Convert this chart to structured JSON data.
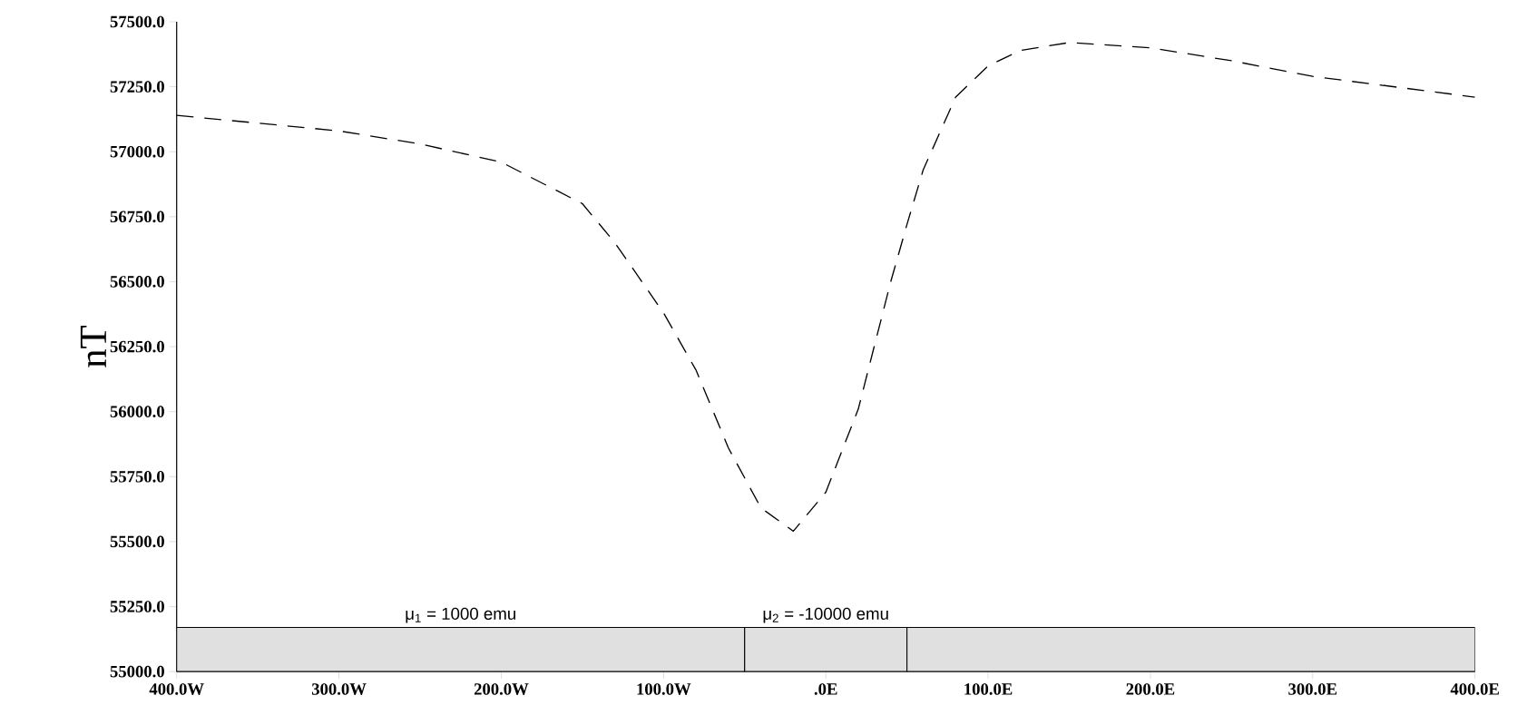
{
  "chart_data": {
    "type": "line",
    "ylabel": "nT",
    "x": [
      -400,
      -300,
      -250,
      -200,
      -150,
      -130,
      -100,
      -80,
      -60,
      -40,
      -20,
      0,
      20,
      40,
      50,
      60,
      80,
      100,
      120,
      150,
      200,
      250,
      300,
      350,
      400
    ],
    "series": [
      {
        "color": "#000000",
        "values": [
          57140,
          57080,
          57030,
          56960,
          56800,
          56650,
          56380,
          56160,
          55860,
          55630,
          55540,
          55690,
          56010,
          56500,
          56720,
          56930,
          57210,
          57330,
          57390,
          57420,
          57400,
          57350,
          57290,
          57250,
          57210
        ]
      }
    ],
    "xlim": [
      -400,
      400
    ],
    "ylim": [
      55000,
      57500
    ],
    "xticks": [
      {
        "value": -400,
        "label": "400.0W"
      },
      {
        "value": -300,
        "label": "300.0W"
      },
      {
        "value": -200,
        "label": "200.0W"
      },
      {
        "value": -100,
        "label": "100.0W"
      },
      {
        "value": 0,
        "label": ".0E"
      },
      {
        "value": 100,
        "label": "100.0E"
      },
      {
        "value": 200,
        "label": "200.0E"
      },
      {
        "value": 300,
        "label": "300.0E"
      },
      {
        "value": 400,
        "label": "400.0E"
      }
    ],
    "yticks": [
      {
        "value": 55000,
        "label": "55000.0"
      },
      {
        "value": 55250,
        "label": "55250.0"
      },
      {
        "value": 55500,
        "label": "55500.0"
      },
      {
        "value": 55750,
        "label": "55750.0"
      },
      {
        "value": 56000,
        "label": "56000.0"
      },
      {
        "value": 56250,
        "label": "56250.0"
      },
      {
        "value": 56500,
        "label": "56500.0"
      },
      {
        "value": 56750,
        "label": "56750.0"
      },
      {
        "value": 57000,
        "label": "57000.0"
      },
      {
        "value": 57250,
        "label": "57250.0"
      },
      {
        "value": 57500,
        "label": "57500.0"
      }
    ],
    "bands": [
      {
        "axis": "x",
        "from": -400,
        "to": -50,
        "label": "μ$_{1}$ = 1000 emu",
        "color": "#e0e0e0"
      },
      {
        "axis": "x",
        "from": -50,
        "to": 50,
        "label": "μ$_{2}$ = -10000 emu",
        "color": "#e0e0e0"
      },
      {
        "axis": "x",
        "from": 50,
        "to": 400,
        "color": "#e0e0e0"
      }
    ],
    "line_style": "dashed",
    "marker": "none",
    "grid": false
  }
}
